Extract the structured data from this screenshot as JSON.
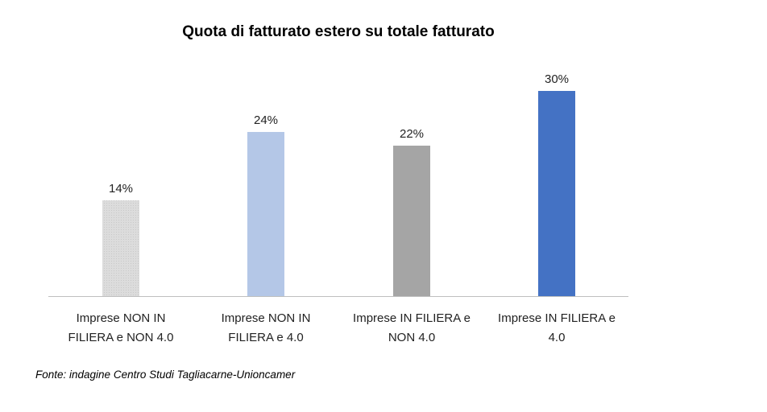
{
  "chart_data": {
    "type": "bar",
    "title": "Quota di fatturato estero su totale fatturato",
    "categories": [
      [
        "Imprese NON IN",
        "FILIERA e NON 4.0"
      ],
      [
        "Imprese NON IN",
        "FILIERA e 4.0"
      ],
      [
        "Imprese IN FILIERA e",
        "NON 4.0"
      ],
      [
        "Imprese IN FILIERA e",
        "4.0"
      ]
    ],
    "values": [
      14,
      24,
      22,
      30
    ],
    "value_labels": [
      "14%",
      "24%",
      "22%",
      "30%"
    ],
    "colors": [
      "#d9d9d9",
      "#b4c7e7",
      "#a5a5a5",
      "#4472c4"
    ],
    "ylim": [
      0,
      36
    ],
    "grid": false,
    "legend": "none",
    "xlabel": "",
    "ylabel": ""
  },
  "source": "Fonte: indagine Centro Studi Tagliacarne-Unioncamer"
}
